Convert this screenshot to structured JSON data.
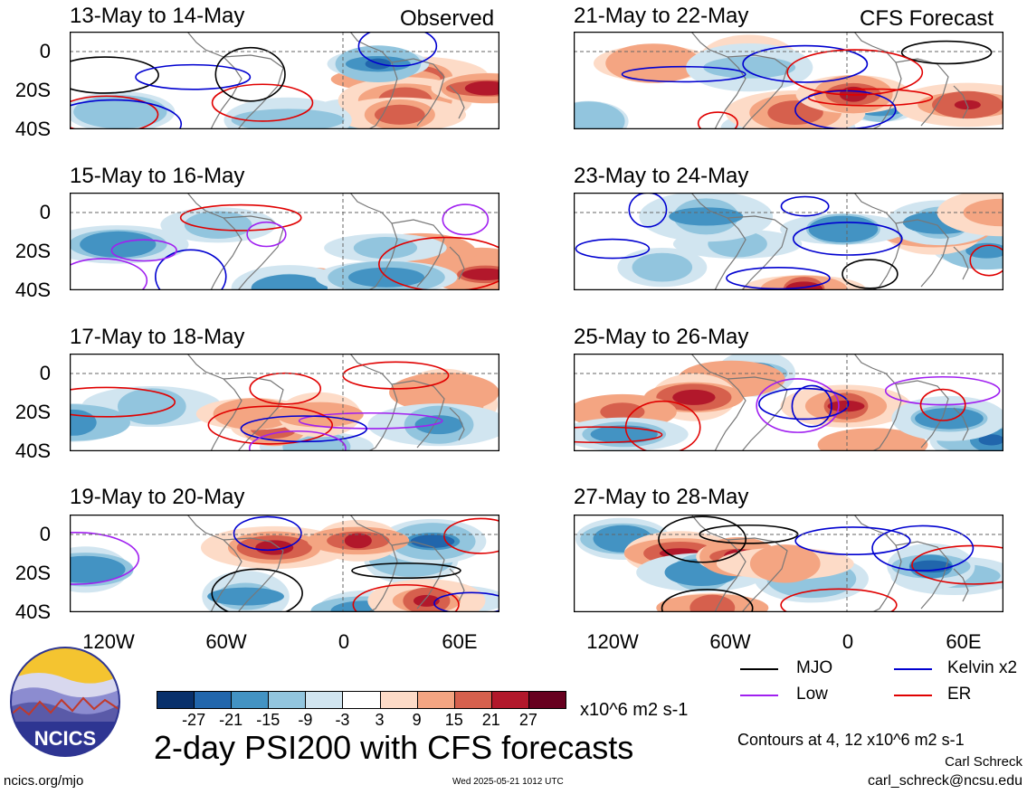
{
  "panels": [
    {
      "title": "13-May to 14-May",
      "tag": "Observed"
    },
    {
      "title": "15-May to 16-May",
      "tag": ""
    },
    {
      "title": "17-May to 18-May",
      "tag": ""
    },
    {
      "title": "19-May to 20-May",
      "tag": ""
    },
    {
      "title": "21-May to 22-May",
      "tag": "CFS Forecast"
    },
    {
      "title": "23-May to 24-May",
      "tag": ""
    },
    {
      "title": "25-May to 26-May",
      "tag": ""
    },
    {
      "title": "27-May to 28-May",
      "tag": ""
    }
  ],
  "lat_labels": [
    "0",
    "20S",
    "40S"
  ],
  "lon_labels": [
    "120W",
    "60W",
    "0",
    "60E"
  ],
  "legend": [
    {
      "label": "MJO",
      "color": "#000000"
    },
    {
      "label": "Kelvin x2",
      "color": "#0000d0"
    },
    {
      "label": "Low",
      "color": "#a020f0"
    },
    {
      "label": "ER",
      "color": "#e00000"
    }
  ],
  "colorbar": {
    "colors": [
      "#08306b",
      "#2166ac",
      "#4393c3",
      "#92c5de",
      "#d1e5f0",
      "#ffffff",
      "#fddbc7",
      "#f4a582",
      "#d6604d",
      "#b2182b",
      "#67001f"
    ],
    "ticks": [
      "-27",
      "-21",
      "-15",
      "-9",
      "-3",
      "3",
      "9",
      "15",
      "21",
      "27"
    ],
    "units": "x10^6 m2 s-1"
  },
  "title": "2-day PSI200 with CFS forecasts",
  "contour_note": "Contours at 4, 12 x10^6 m2 s-1",
  "author": "Carl Schreck",
  "email": "carl_schreck@ncsu.edu",
  "site": "ncics.org/mjo",
  "timestamp": "Wed 2025-05-21 1012 UTC",
  "logo_text": "NCICS"
}
